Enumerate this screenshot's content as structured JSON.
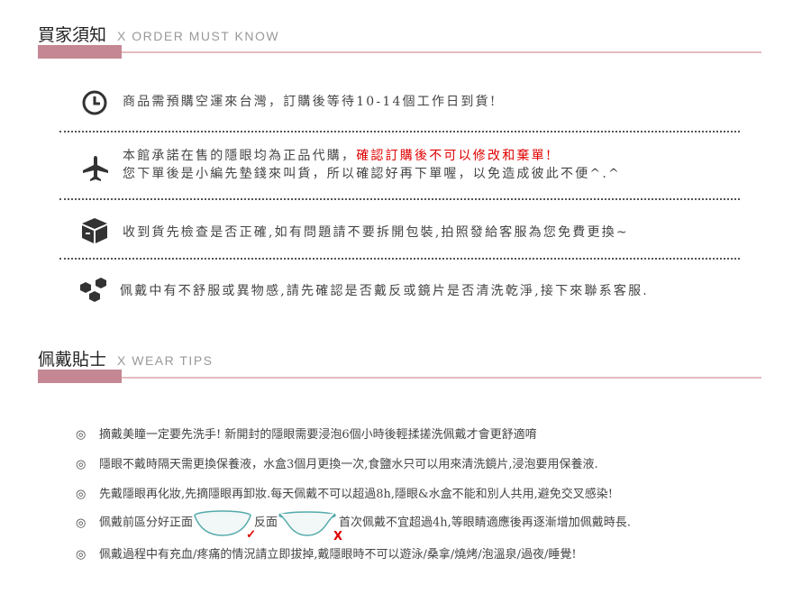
{
  "section1": {
    "title": "買家須知",
    "subtitle": "X  ORDER MUST KNOW",
    "items": [
      {
        "icon": "clock-icon",
        "text": "商品需預購空運來台灣，訂購後等待10-14個工作日到貨!"
      },
      {
        "icon": "airplane-icon",
        "text": "本館承諾在售的隱眼均為正品代購，",
        "highlight": "確認訂購後不可以修改和棄單!",
        "text2": "您下單後是小編先墊錢來叫貨，所以確認好再下單喔，以免造成彼此不便^.^"
      },
      {
        "icon": "box-icon",
        "text": "收到貨先檢查是否正確,如有問題請不要拆開包裝,拍照發給客服為您免費更換~"
      },
      {
        "icon": "cubes-icon",
        "text": "佩戴中有不舒服或異物感,請先確認是否戴反或鏡片是否清洗乾淨,接下來聯系客服."
      }
    ]
  },
  "section2": {
    "title": "佩戴貼士",
    "subtitle": "X  WEAR TIPS",
    "bullet": "◎",
    "tips": [
      "摘戴美瞳一定要先洗手! 新開封的隱眼需要浸泡6個小時後輕揉搓洗佩戴才會更舒適唷",
      "隱眼不戴時隔天需更換保養液，水盒3個月更換一次,食鹽水只可以用來清洗鏡片,浸泡要用保養液.",
      "先戴隱眼再化妝,先摘隱眼再卸妝.每天佩戴不可以超過8h,隱眼&水盒不能和別人共用,避免交叉感染!"
    ],
    "tip4": {
      "a": "佩戴前區分好正面",
      "b": "反面",
      "c": "首次佩戴不宜超過4h,等眼睛適應後再逐漸增加佩戴時長.",
      "check": "✓",
      "cross": "X"
    },
    "tip5": "佩戴過程中有充血/疼痛的情況請立即拔掉,戴隱眼時不可以遊泳/桑拿/燒烤/泡溫泉/過夜/睡覺!"
  },
  "colors": {
    "accent": "#c48793",
    "line": "#e3bcc2",
    "red": "#e00000"
  }
}
